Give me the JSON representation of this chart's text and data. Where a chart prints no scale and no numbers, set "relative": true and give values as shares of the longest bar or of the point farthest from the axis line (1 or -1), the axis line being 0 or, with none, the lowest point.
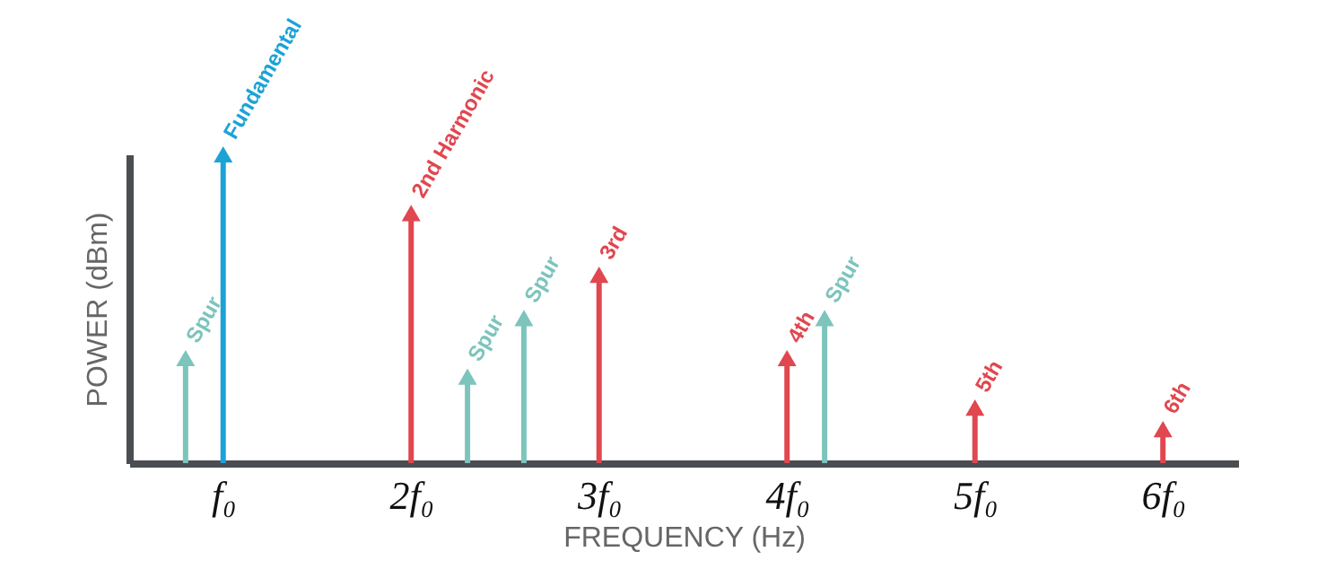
{
  "chart_data": {
    "type": "lollipop",
    "relative": true,
    "xlabel": "FREQUENCY (Hz)",
    "ylabel": "POWER (dBm)",
    "marker": "triangle",
    "xlim": [
      0.5,
      6.4
    ],
    "xticks": [
      {
        "value": 1,
        "label": "f₀"
      },
      {
        "value": 2,
        "label": "2f₀"
      },
      {
        "value": 3,
        "label": "3f₀"
      },
      {
        "value": 4,
        "label": "4f₀"
      },
      {
        "value": 5,
        "label": "5f₀"
      },
      {
        "value": 6,
        "label": "6f₀"
      }
    ],
    "series": [
      {
        "color": "#1ba3d6",
        "x": [
          1
        ],
        "values": [
          1
        ]
      },
      {
        "color": "#e0474f",
        "x": [
          2,
          3,
          4,
          5,
          6
        ],
        "values": [
          0.81,
          0.61,
          0.34,
          0.18,
          0.11
        ]
      },
      {
        "color": "#7cc4bc",
        "x": [
          0.8,
          2.3,
          2.6,
          4.2
        ],
        "values": [
          0.34,
          0.28,
          0.47,
          0.47
        ]
      }
    ],
    "annotations": [
      {
        "text": "Fundamental",
        "x": 1,
        "y": 1
      },
      {
        "text": "2nd Harmonic",
        "x": 2,
        "y": 0.81
      },
      {
        "text": "3rd",
        "x": 3,
        "y": 0.61
      },
      {
        "text": "4th",
        "x": 4,
        "y": 0.34
      },
      {
        "text": "5th",
        "x": 5,
        "y": 0.18
      },
      {
        "text": "6th",
        "x": 6,
        "y": 0.11
      },
      {
        "text": "Spur",
        "x": 0.8,
        "y": 0.34
      },
      {
        "text": "Spur",
        "x": 2.3,
        "y": 0.28
      },
      {
        "text": "Spur",
        "x": 2.6,
        "y": 0.47
      },
      {
        "text": "Spur",
        "x": 4.2,
        "y": 0.47
      }
    ]
  }
}
